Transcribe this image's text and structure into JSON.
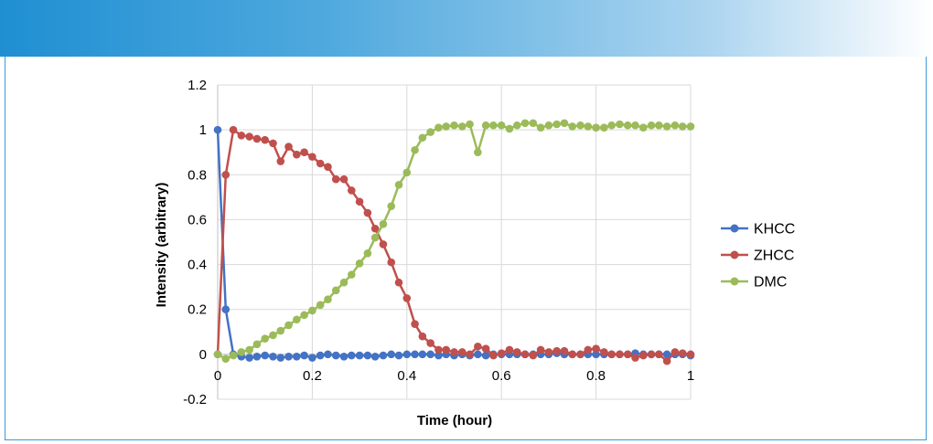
{
  "chart_data": {
    "type": "line",
    "title": "",
    "xlabel": "Time (hour)",
    "ylabel": "Intensity (arbitrary)",
    "xlim": [
      0,
      1
    ],
    "ylim": [
      -0.2,
      1.2
    ],
    "xticks": [
      "0",
      "0.2",
      "0.4",
      "0.6",
      "0.8",
      "1"
    ],
    "yticks": [
      "-0.2",
      "0",
      "0.2",
      "0.4",
      "0.6",
      "0.8",
      "1",
      "1.2"
    ],
    "grid": true,
    "legend_position": "right",
    "series": [
      {
        "name": "KHCC",
        "color": "#4472c4",
        "x": [
          0.0,
          0.017,
          0.033,
          0.05,
          0.067,
          0.083,
          0.1,
          0.117,
          0.133,
          0.15,
          0.167,
          0.183,
          0.2,
          0.217,
          0.233,
          0.25,
          0.267,
          0.283,
          0.3,
          0.317,
          0.333,
          0.35,
          0.367,
          0.383,
          0.4,
          0.417,
          0.433,
          0.45,
          0.467,
          0.483,
          0.5,
          0.517,
          0.533,
          0.55,
          0.567,
          0.583,
          0.6,
          0.617,
          0.633,
          0.65,
          0.667,
          0.683,
          0.7,
          0.717,
          0.733,
          0.75,
          0.767,
          0.783,
          0.8,
          0.817,
          0.833,
          0.85,
          0.867,
          0.883,
          0.9,
          0.917,
          0.933,
          0.95,
          0.967,
          0.983,
          1.0
        ],
        "values": [
          1.0,
          0.2,
          0.0,
          -0.01,
          -0.015,
          -0.01,
          -0.005,
          -0.01,
          -0.015,
          -0.01,
          -0.01,
          -0.005,
          -0.015,
          -0.005,
          0.0,
          -0.005,
          -0.01,
          -0.005,
          -0.005,
          -0.005,
          -0.01,
          -0.005,
          0.0,
          -0.005,
          0.0,
          0.0,
          0.0,
          0.0,
          -0.005,
          0.0,
          -0.005,
          0.0,
          -0.005,
          0.0,
          -0.005,
          0.0,
          0.0,
          0.0,
          0.0,
          0.0,
          0.0,
          0.0,
          0.0,
          0.005,
          0.0,
          0.0,
          0.0,
          0.0,
          0.0,
          0.0,
          0.0,
          0.0,
          0.0,
          0.005,
          0.0,
          0.0,
          0.0,
          0.0,
          0.0,
          0.0,
          -0.005
        ]
      },
      {
        "name": "ZHCC",
        "color": "#c0504d",
        "x": [
          0.0,
          0.017,
          0.033,
          0.05,
          0.067,
          0.083,
          0.1,
          0.117,
          0.133,
          0.15,
          0.167,
          0.183,
          0.2,
          0.217,
          0.233,
          0.25,
          0.267,
          0.283,
          0.3,
          0.317,
          0.333,
          0.35,
          0.367,
          0.383,
          0.4,
          0.417,
          0.433,
          0.45,
          0.467,
          0.483,
          0.5,
          0.517,
          0.533,
          0.55,
          0.567,
          0.583,
          0.6,
          0.617,
          0.633,
          0.65,
          0.667,
          0.683,
          0.7,
          0.717,
          0.733,
          0.75,
          0.767,
          0.783,
          0.8,
          0.817,
          0.833,
          0.85,
          0.867,
          0.883,
          0.9,
          0.917,
          0.933,
          0.95,
          0.967,
          0.983,
          1.0
        ],
        "values": [
          0.0,
          0.8,
          1.0,
          0.975,
          0.97,
          0.96,
          0.955,
          0.94,
          0.86,
          0.925,
          0.89,
          0.9,
          0.88,
          0.85,
          0.835,
          0.78,
          0.78,
          0.73,
          0.68,
          0.63,
          0.56,
          0.49,
          0.41,
          0.32,
          0.25,
          0.135,
          0.08,
          0.05,
          0.02,
          0.02,
          0.01,
          0.01,
          0.0,
          0.035,
          0.025,
          -0.005,
          0.005,
          0.02,
          0.01,
          0.0,
          -0.005,
          0.02,
          0.01,
          0.015,
          0.015,
          0.0,
          0.0,
          0.02,
          0.025,
          0.01,
          0.0,
          0.0,
          0.0,
          -0.015,
          -0.005,
          0.0,
          0.0,
          -0.03,
          0.01,
          0.005,
          0.0
        ]
      },
      {
        "name": "DMC",
        "color": "#9bbb59",
        "x": [
          0.0,
          0.017,
          0.033,
          0.05,
          0.067,
          0.083,
          0.1,
          0.117,
          0.133,
          0.15,
          0.167,
          0.183,
          0.2,
          0.217,
          0.233,
          0.25,
          0.267,
          0.283,
          0.3,
          0.317,
          0.333,
          0.35,
          0.367,
          0.383,
          0.4,
          0.417,
          0.433,
          0.45,
          0.467,
          0.483,
          0.5,
          0.517,
          0.533,
          0.55,
          0.567,
          0.583,
          0.6,
          0.617,
          0.633,
          0.65,
          0.667,
          0.683,
          0.7,
          0.717,
          0.733,
          0.75,
          0.767,
          0.783,
          0.8,
          0.817,
          0.833,
          0.85,
          0.867,
          0.883,
          0.9,
          0.917,
          0.933,
          0.95,
          0.967,
          0.983,
          1.0
        ],
        "values": [
          0.0,
          -0.02,
          -0.005,
          0.01,
          0.02,
          0.045,
          0.07,
          0.085,
          0.105,
          0.13,
          0.155,
          0.175,
          0.195,
          0.22,
          0.245,
          0.285,
          0.32,
          0.355,
          0.405,
          0.45,
          0.52,
          0.58,
          0.66,
          0.755,
          0.81,
          0.91,
          0.965,
          0.99,
          1.01,
          1.015,
          1.02,
          1.015,
          1.025,
          0.9,
          1.02,
          1.02,
          1.02,
          1.005,
          1.02,
          1.03,
          1.03,
          1.01,
          1.02,
          1.025,
          1.03,
          1.015,
          1.02,
          1.015,
          1.01,
          1.01,
          1.02,
          1.025,
          1.02,
          1.02,
          1.01,
          1.02,
          1.02,
          1.015,
          1.02,
          1.015,
          1.015
        ]
      }
    ]
  }
}
